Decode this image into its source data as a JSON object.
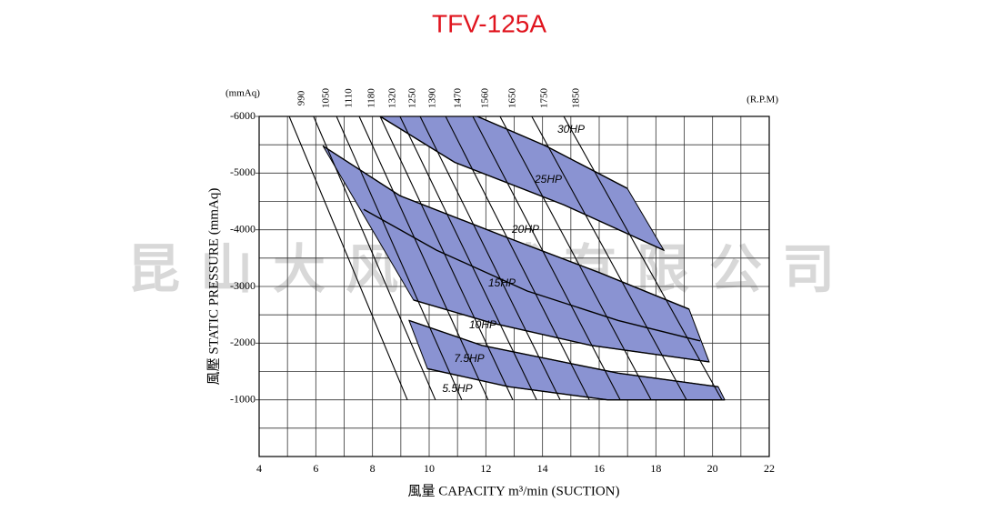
{
  "chart_data": {
    "type": "fan-curve",
    "title": "TFV-125A",
    "watermark": "昆山大风机械有限公司",
    "y_unit": "(mmAq)",
    "rpm_unit": "(R.P.M)",
    "x_label": "風量  CAPACITY  m³/min (SUCTION)",
    "y_label": "風壓  STATIC  PRESSURE  (mmAq)",
    "xlim": [
      4,
      22
    ],
    "xticks": [
      4,
      6,
      8,
      10,
      12,
      14,
      16,
      18,
      20,
      22
    ],
    "xminor_ticks": [
      5,
      7,
      9,
      11,
      13,
      15,
      17,
      19,
      21
    ],
    "ylim": [
      0,
      -6000
    ],
    "yticks": [
      -6000,
      -5000,
      -4000,
      -3000,
      -2000,
      -1000
    ],
    "yminor_ticks": [
      -5500,
      -4500,
      -3500,
      -2500,
      -1500,
      -500
    ],
    "band_color": "#8a93d2",
    "rpm_curves": [
      {
        "name": "990",
        "x": [
          5.06,
          9.23
        ],
        "y": [
          -6000,
          -1000
        ]
      },
      {
        "name": "1050",
        "x": [
          5.92,
          10.22
        ],
        "y": [
          -6000,
          -1000
        ]
      },
      {
        "name": "1110",
        "x": [
          6.73,
          11.15
        ],
        "y": [
          -6000,
          -1000
        ]
      },
      {
        "name": "1180",
        "x": [
          7.53,
          12.08
        ],
        "y": [
          -6000,
          -1000
        ]
      },
      {
        "name": "1320",
        "x": [
          8.27,
          12.95
        ],
        "y": [
          -6000,
          -1000
        ]
      },
      {
        "name": "1250",
        "x": [
          8.97,
          13.79
        ],
        "y": [
          -6000,
          -1000
        ]
      },
      {
        "name": "1390",
        "x": [
          9.68,
          14.62
        ],
        "y": [
          -6000,
          -1000
        ]
      },
      {
        "name": "1470",
        "x": [
          10.58,
          15.65
        ],
        "y": [
          -6000,
          -1000
        ]
      },
      {
        "name": "1560",
        "x": [
          11.54,
          16.74
        ],
        "y": [
          -6000,
          -1000
        ]
      },
      {
        "name": "1650",
        "x": [
          12.5,
          17.83
        ],
        "y": [
          -6000,
          -1000
        ]
      },
      {
        "name": "1750",
        "x": [
          13.62,
          19.08
        ],
        "y": [
          -6000,
          -1000
        ]
      },
      {
        "name": "1850",
        "x": [
          14.75,
          20.33
        ],
        "y": [
          -6000,
          -1000
        ]
      }
    ],
    "hp_curves": [
      {
        "name": "30HP",
        "x": [
          11.7,
          14.11,
          16.99
        ],
        "y": [
          -6000,
          -5480,
          -4730
        ]
      },
      {
        "name": "25HP",
        "x": [
          8.27,
          10.9,
          14.75,
          18.28
        ],
        "y": [
          -6000,
          -5190,
          -4440,
          -3640
        ]
      },
      {
        "name": "20HP",
        "x": [
          6.25,
          8.97,
          12.82,
          16.03,
          19.17
        ],
        "y": [
          -5480,
          -4600,
          -3850,
          -3240,
          -2600
        ]
      },
      {
        "name": "15HP",
        "x": [
          7.69,
          10.26,
          13.46,
          16.67,
          19.56
        ],
        "y": [
          -4360,
          -3640,
          -2920,
          -2400,
          -2040
        ]
      },
      {
        "name": "10HP",
        "x": [
          9.45,
          12.18,
          15.71,
          19.88
        ],
        "y": [
          -2760,
          -2360,
          -1960,
          -1670
        ]
      },
      {
        "name": "7.5HP",
        "x": [
          9.29,
          11.86,
          16.67,
          20.2
        ],
        "y": [
          -2400,
          -1960,
          -1470,
          -1230
        ]
      },
      {
        "name": "5.5HP",
        "x": [
          9.94,
          12.82,
          16.29,
          20.43
        ],
        "y": [
          -1550,
          -1230,
          -1000,
          -1000
        ]
      }
    ]
  }
}
